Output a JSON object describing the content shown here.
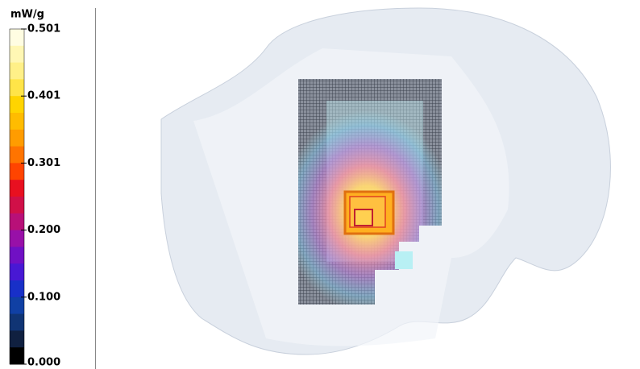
{
  "colorbar": {
    "unit": "mW/g",
    "ticks": [
      "0.501",
      "0.401",
      "0.301",
      "0.200",
      "0.100",
      "0.000"
    ]
  }
}
